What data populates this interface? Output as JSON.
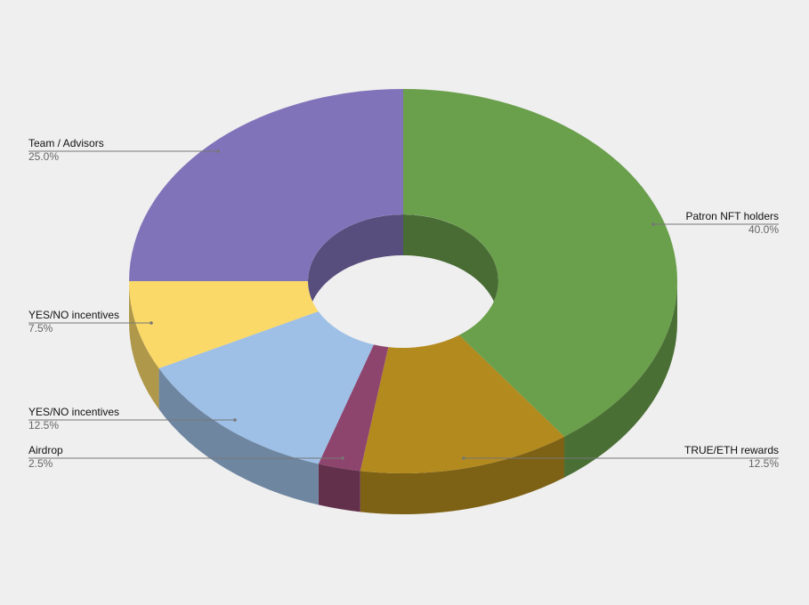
{
  "chart_data": {
    "type": "donut3d",
    "categories": [
      "Patron NFT holders",
      "TRUE/ETH rewards",
      "Airdrop",
      "YES/NO incentives",
      "YES/NO incentives",
      "Team / Advisors"
    ],
    "values": [
      40,
      12.5,
      2.5,
      12.5,
      7.5,
      25
    ],
    "value_labels": [
      "40.0%",
      "12.5%",
      "2.5%",
      "12.5%",
      "7.5%",
      "25.0%"
    ],
    "colors": [
      "#6a9f4c",
      "#b38a1e",
      "#8e456d",
      "#9ebfe6",
      "#fad968",
      "#8173ba"
    ]
  }
}
